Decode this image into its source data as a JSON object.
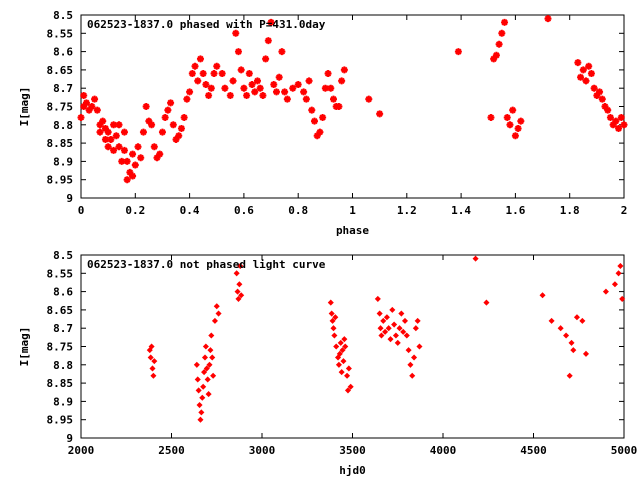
{
  "chart_data": [
    {
      "type": "scatter",
      "title": "062523-1837.0 phased with P=431.0day",
      "xlabel": "phase",
      "ylabel": "I[mag]",
      "xlim": [
        0,
        2
      ],
      "ylim": [
        8.5,
        9
      ],
      "y_inverted": true,
      "grid": false,
      "marker": "star",
      "color": "#ff0000",
      "x_ticks": [
        "0",
        "0.2",
        "0.4",
        "0.6",
        "0.8",
        "1",
        "1.2",
        "1.4",
        "1.6",
        "1.8",
        "2"
      ],
      "y_ticks": [
        "8.5",
        "8.55",
        "8.6",
        "8.65",
        "8.7",
        "8.75",
        "8.8",
        "8.85",
        "8.9",
        "8.95",
        "9"
      ],
      "series": [
        {
          "points": [
            [
              0.0,
              8.78
            ],
            [
              0.01,
              8.75
            ],
            [
              0.01,
              8.72
            ],
            [
              0.02,
              8.74
            ],
            [
              0.03,
              8.76
            ],
            [
              0.04,
              8.75
            ],
            [
              0.05,
              8.73
            ],
            [
              0.06,
              8.76
            ],
            [
              0.07,
              8.8
            ],
            [
              0.07,
              8.82
            ],
            [
              0.08,
              8.79
            ],
            [
              0.09,
              8.81
            ],
            [
              0.09,
              8.84
            ],
            [
              0.1,
              8.86
            ],
            [
              0.1,
              8.82
            ],
            [
              0.11,
              8.84
            ],
            [
              0.12,
              8.8
            ],
            [
              0.12,
              8.87
            ],
            [
              0.13,
              8.83
            ],
            [
              0.14,
              8.86
            ],
            [
              0.14,
              8.8
            ],
            [
              0.15,
              8.9
            ],
            [
              0.16,
              8.87
            ],
            [
              0.16,
              8.82
            ],
            [
              0.17,
              8.9
            ],
            [
              0.17,
              8.95
            ],
            [
              0.18,
              8.93
            ],
            [
              0.19,
              8.88
            ],
            [
              0.19,
              8.94
            ],
            [
              0.2,
              8.91
            ],
            [
              0.21,
              8.86
            ],
            [
              0.22,
              8.89
            ],
            [
              0.23,
              8.82
            ],
            [
              0.24,
              8.75
            ],
            [
              0.25,
              8.79
            ],
            [
              0.26,
              8.8
            ],
            [
              0.27,
              8.86
            ],
            [
              0.28,
              8.89
            ],
            [
              0.29,
              8.88
            ],
            [
              0.3,
              8.82
            ],
            [
              0.31,
              8.78
            ],
            [
              0.32,
              8.76
            ],
            [
              0.33,
              8.74
            ],
            [
              0.34,
              8.8
            ],
            [
              0.35,
              8.84
            ],
            [
              0.36,
              8.83
            ],
            [
              0.37,
              8.81
            ],
            [
              0.38,
              8.78
            ],
            [
              0.39,
              8.73
            ],
            [
              0.4,
              8.71
            ],
            [
              0.41,
              8.66
            ],
            [
              0.42,
              8.64
            ],
            [
              0.43,
              8.68
            ],
            [
              0.44,
              8.62
            ],
            [
              0.45,
              8.66
            ],
            [
              0.46,
              8.69
            ],
            [
              0.47,
              8.72
            ],
            [
              0.48,
              8.7
            ],
            [
              0.49,
              8.66
            ],
            [
              0.5,
              8.64
            ],
            [
              0.52,
              8.66
            ],
            [
              0.53,
              8.7
            ],
            [
              0.55,
              8.72
            ],
            [
              0.56,
              8.68
            ],
            [
              0.57,
              8.55
            ],
            [
              0.58,
              8.6
            ],
            [
              0.59,
              8.65
            ],
            [
              0.6,
              8.7
            ],
            [
              0.61,
              8.72
            ],
            [
              0.62,
              8.66
            ],
            [
              0.63,
              8.69
            ],
            [
              0.64,
              8.71
            ],
            [
              0.65,
              8.68
            ],
            [
              0.66,
              8.7
            ],
            [
              0.67,
              8.72
            ],
            [
              0.68,
              8.62
            ],
            [
              0.69,
              8.57
            ],
            [
              0.7,
              8.52
            ],
            [
              0.71,
              8.69
            ],
            [
              0.72,
              8.71
            ],
            [
              0.73,
              8.67
            ],
            [
              0.74,
              8.6
            ],
            [
              0.75,
              8.71
            ],
            [
              0.76,
              8.73
            ],
            [
              0.78,
              8.7
            ],
            [
              0.8,
              8.69
            ],
            [
              0.82,
              8.71
            ],
            [
              0.83,
              8.73
            ],
            [
              0.84,
              8.68
            ],
            [
              0.85,
              8.76
            ],
            [
              0.86,
              8.79
            ],
            [
              0.87,
              8.83
            ],
            [
              0.88,
              8.82
            ],
            [
              0.89,
              8.78
            ],
            [
              0.9,
              8.7
            ],
            [
              0.91,
              8.66
            ],
            [
              0.92,
              8.7
            ],
            [
              0.93,
              8.73
            ],
            [
              0.94,
              8.75
            ],
            [
              0.95,
              8.75
            ],
            [
              0.96,
              8.68
            ],
            [
              0.97,
              8.65
            ],
            [
              1.06,
              8.73
            ],
            [
              1.1,
              8.77
            ],
            [
              1.39,
              8.6
            ],
            [
              1.51,
              8.78
            ],
            [
              1.52,
              8.62
            ],
            [
              1.53,
              8.61
            ],
            [
              1.54,
              8.58
            ],
            [
              1.55,
              8.55
            ],
            [
              1.56,
              8.52
            ],
            [
              1.57,
              8.78
            ],
            [
              1.58,
              8.8
            ],
            [
              1.59,
              8.76
            ],
            [
              1.6,
              8.83
            ],
            [
              1.61,
              8.81
            ],
            [
              1.62,
              8.79
            ],
            [
              1.72,
              8.51
            ],
            [
              1.83,
              8.63
            ],
            [
              1.84,
              8.67
            ],
            [
              1.85,
              8.65
            ],
            [
              1.86,
              8.68
            ],
            [
              1.87,
              8.64
            ],
            [
              1.88,
              8.66
            ],
            [
              1.89,
              8.7
            ],
            [
              1.9,
              8.72
            ],
            [
              1.91,
              8.71
            ],
            [
              1.92,
              8.73
            ],
            [
              1.93,
              8.75
            ],
            [
              1.94,
              8.76
            ],
            [
              1.95,
              8.78
            ],
            [
              1.96,
              8.8
            ],
            [
              1.97,
              8.79
            ],
            [
              1.98,
              8.81
            ],
            [
              1.99,
              8.78
            ],
            [
              2.0,
              8.8
            ]
          ]
        }
      ]
    },
    {
      "type": "scatter",
      "title": "062523-1837.0 not phased light curve",
      "xlabel": "hjd0",
      "ylabel": "I[mag]",
      "xlim": [
        2000,
        5000
      ],
      "ylim": [
        8.5,
        9
      ],
      "y_inverted": true,
      "grid": false,
      "marker": "diamond",
      "color": "#ff0000",
      "x_ticks": [
        "2000",
        "2500",
        "3000",
        "3500",
        "4000",
        "4500",
        "5000"
      ],
      "y_ticks": [
        "8.5",
        "8.55",
        "8.6",
        "8.65",
        "8.7",
        "8.75",
        "8.8",
        "8.85",
        "8.9",
        "8.95",
        "9"
      ],
      "series": [
        {
          "points": [
            [
              2380,
              8.76
            ],
            [
              2385,
              8.78
            ],
            [
              2390,
              8.75
            ],
            [
              2395,
              8.81
            ],
            [
              2400,
              8.83
            ],
            [
              2405,
              8.79
            ],
            [
              2640,
              8.8
            ],
            [
              2645,
              8.84
            ],
            [
              2650,
              8.87
            ],
            [
              2655,
              8.91
            ],
            [
              2660,
              8.95
            ],
            [
              2665,
              8.93
            ],
            [
              2670,
              8.89
            ],
            [
              2675,
              8.86
            ],
            [
              2680,
              8.82
            ],
            [
              2685,
              8.78
            ],
            [
              2690,
              8.75
            ],
            [
              2695,
              8.81
            ],
            [
              2700,
              8.84
            ],
            [
              2705,
              8.88
            ],
            [
              2710,
              8.8
            ],
            [
              2715,
              8.76
            ],
            [
              2720,
              8.72
            ],
            [
              2725,
              8.78
            ],
            [
              2730,
              8.83
            ],
            [
              2740,
              8.68
            ],
            [
              2750,
              8.64
            ],
            [
              2760,
              8.66
            ],
            [
              2860,
              8.55
            ],
            [
              2865,
              8.6
            ],
            [
              2870,
              8.62
            ],
            [
              2875,
              8.58
            ],
            [
              2880,
              8.53
            ],
            [
              2885,
              8.61
            ],
            [
              3380,
              8.63
            ],
            [
              3385,
              8.66
            ],
            [
              3390,
              8.68
            ],
            [
              3395,
              8.7
            ],
            [
              3400,
              8.72
            ],
            [
              3405,
              8.67
            ],
            [
              3410,
              8.75
            ],
            [
              3420,
              8.78
            ],
            [
              3425,
              8.8
            ],
            [
              3430,
              8.77
            ],
            [
              3435,
              8.74
            ],
            [
              3440,
              8.82
            ],
            [
              3445,
              8.76
            ],
            [
              3450,
              8.79
            ],
            [
              3455,
              8.73
            ],
            [
              3460,
              8.75
            ],
            [
              3470,
              8.83
            ],
            [
              3475,
              8.87
            ],
            [
              3480,
              8.81
            ],
            [
              3490,
              8.86
            ],
            [
              3640,
              8.62
            ],
            [
              3650,
              8.66
            ],
            [
              3655,
              8.7
            ],
            [
              3660,
              8.72
            ],
            [
              3670,
              8.68
            ],
            [
              3680,
              8.71
            ],
            [
              3690,
              8.67
            ],
            [
              3700,
              8.7
            ],
            [
              3710,
              8.73
            ],
            [
              3720,
              8.65
            ],
            [
              3730,
              8.69
            ],
            [
              3740,
              8.72
            ],
            [
              3750,
              8.74
            ],
            [
              3760,
              8.7
            ],
            [
              3770,
              8.66
            ],
            [
              3780,
              8.71
            ],
            [
              3790,
              8.68
            ],
            [
              3800,
              8.72
            ],
            [
              3810,
              8.76
            ],
            [
              3820,
              8.8
            ],
            [
              3830,
              8.83
            ],
            [
              3840,
              8.78
            ],
            [
              3850,
              8.7
            ],
            [
              3860,
              8.68
            ],
            [
              3870,
              8.75
            ],
            [
              4180,
              8.51
            ],
            [
              4240,
              8.63
            ],
            [
              4550,
              8.61
            ],
            [
              4600,
              8.68
            ],
            [
              4650,
              8.7
            ],
            [
              4680,
              8.72
            ],
            [
              4700,
              8.83
            ],
            [
              4710,
              8.74
            ],
            [
              4720,
              8.76
            ],
            [
              4740,
              8.67
            ],
            [
              4770,
              8.68
            ],
            [
              4790,
              8.77
            ],
            [
              4900,
              8.6
            ],
            [
              4950,
              8.58
            ],
            [
              4970,
              8.55
            ],
            [
              4980,
              8.53
            ],
            [
              4990,
              8.62
            ]
          ]
        }
      ]
    }
  ]
}
